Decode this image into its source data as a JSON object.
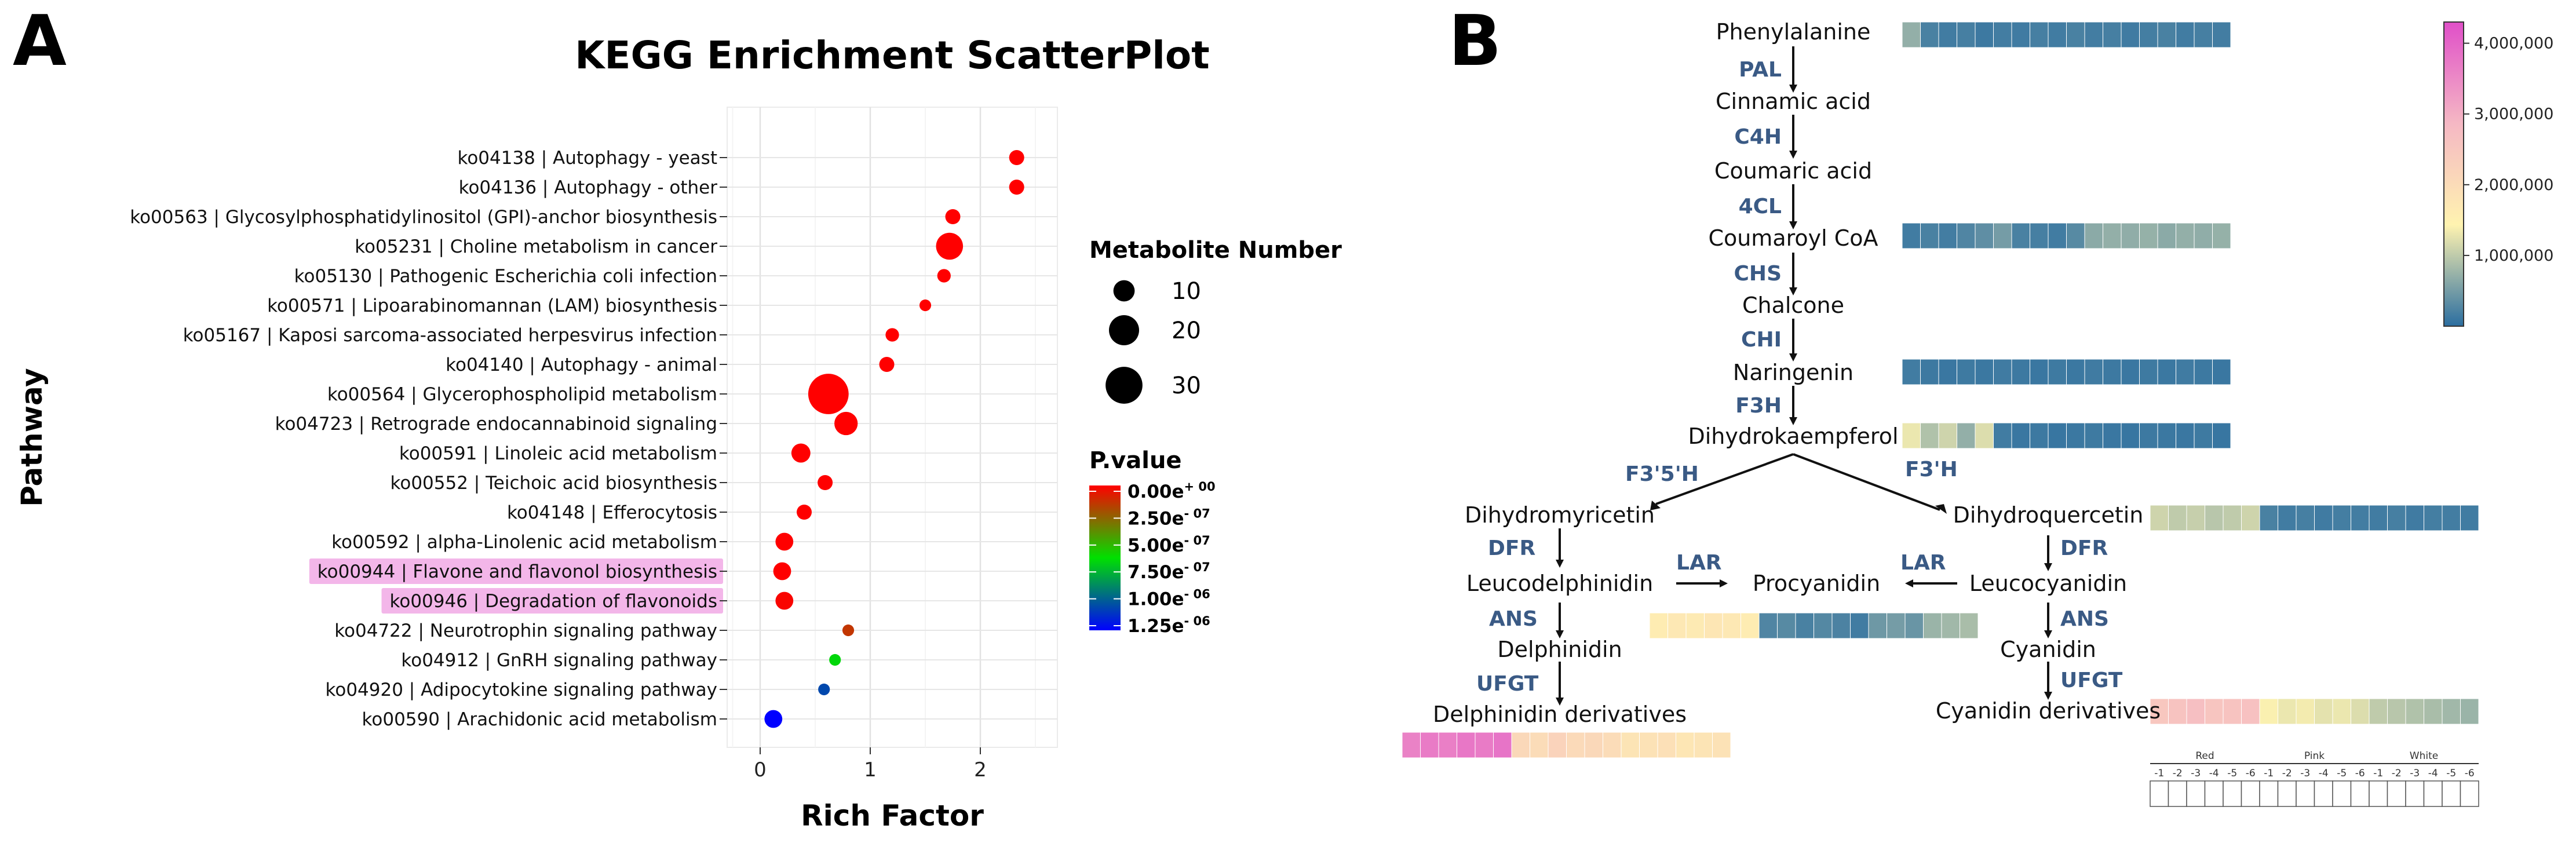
{
  "panels": {
    "a": "A",
    "b": "B"
  },
  "chart_data": {
    "type": "scatter",
    "title": "KEGG Enrichment ScatterPlot",
    "xlabel": "Rich Factor",
    "ylabel": "Pathway",
    "xlim": [
      -0.3,
      2.7
    ],
    "xticks": [
      0,
      1,
      2
    ],
    "grid": true,
    "points": [
      {
        "label": "ko04138 | Autophagy - yeast",
        "rich_factor": 2.33,
        "count": 5,
        "p": 0.0,
        "highlight": false
      },
      {
        "label": "ko04136 | Autophagy - other",
        "rich_factor": 2.33,
        "count": 5,
        "p": 0.0,
        "highlight": false
      },
      {
        "label": "ko00563 | Glycosylphosphatidylinositol (GPI)-anchor biosynthesis",
        "rich_factor": 1.75,
        "count": 5,
        "p": 0.0,
        "highlight": false
      },
      {
        "label": "ko05231 | Choline metabolism in cancer",
        "rich_factor": 1.72,
        "count": 16,
        "p": 0.0,
        "highlight": false
      },
      {
        "label": "ko05130 | Pathogenic Escherichia coli infection",
        "rich_factor": 1.67,
        "count": 4,
        "p": 0.0,
        "highlight": false
      },
      {
        "label": "ko00571 | Lipoarabinomannan (LAM) biosynthesis",
        "rich_factor": 1.5,
        "count": 3,
        "p": 0.0,
        "highlight": false
      },
      {
        "label": "ko05167 | Kaposi sarcoma-associated herpesvirus infection",
        "rich_factor": 1.2,
        "count": 4,
        "p": 0.0,
        "highlight": false
      },
      {
        "label": "ko04140 | Autophagy - animal",
        "rich_factor": 1.15,
        "count": 5,
        "p": 0.0,
        "highlight": false
      },
      {
        "label": "ko00564 | Glycerophospholipid metabolism",
        "rich_factor": 0.62,
        "count": 36,
        "p": 0.0,
        "highlight": false
      },
      {
        "label": "ko04723 | Retrograde endocannabinoid signaling",
        "rich_factor": 0.78,
        "count": 12,
        "p": 0.0,
        "highlight": false
      },
      {
        "label": "ko00591 | Linoleic acid metabolism",
        "rich_factor": 0.37,
        "count": 8,
        "p": 0.0,
        "highlight": false
      },
      {
        "label": "ko00552 | Teichoic acid biosynthesis",
        "rich_factor": 0.59,
        "count": 5,
        "p": 0.0,
        "highlight": false
      },
      {
        "label": "ko04148 | Efferocytosis",
        "rich_factor": 0.4,
        "count": 5,
        "p": 0.0,
        "highlight": false
      },
      {
        "label": "ko00592 | alpha-Linolenic acid metabolism",
        "rich_factor": 0.22,
        "count": 7,
        "p": 0.0,
        "highlight": false
      },
      {
        "label": "ko00944 | Flavone and flavonol biosynthesis",
        "rich_factor": 0.2,
        "count": 7,
        "p": 0.0,
        "highlight": true
      },
      {
        "label": "ko00946 | Degradation of flavonoids",
        "rich_factor": 0.22,
        "count": 7,
        "p": 1.5e-08,
        "highlight": true
      },
      {
        "label": "ko04722 | Neurotrophin signaling pathway",
        "rich_factor": 0.8,
        "count": 3,
        "p": 1.5e-07,
        "highlight": false
      },
      {
        "label": "ko04912 | GnRH signaling pathway",
        "rich_factor": 0.68,
        "count": 3,
        "p": 6.5e-07,
        "highlight": false
      },
      {
        "label": "ko04920 | Adipocytokine signaling pathway",
        "rich_factor": 0.58,
        "count": 3,
        "p": 1.05e-06,
        "highlight": false
      },
      {
        "label": "ko00590 | Arachidonic acid metabolism",
        "rich_factor": 0.12,
        "count": 7,
        "p": 1.25e-06,
        "highlight": false
      }
    ],
    "size_legend": {
      "title": "Metabolite Number",
      "values": [
        10,
        20,
        30
      ],
      "labels": [
        "10",
        "20",
        "30"
      ]
    },
    "color_legend": {
      "title": "P.value",
      "range": [
        0,
        1.25e-06
      ],
      "colors": [
        "#ff0000",
        "#00e000",
        "#0000ff"
      ],
      "ticks": [
        {
          "value": 0,
          "label_base": "0.00e",
          "label_exp": "+ 00"
        },
        {
          "value": 2.5e-07,
          "label_base": "2.50e",
          "label_exp": "- 07"
        },
        {
          "value": 5e-07,
          "label_base": "5.00e",
          "label_exp": "- 07"
        },
        {
          "value": 7.5e-07,
          "label_base": "7.50e",
          "label_exp": "- 07"
        },
        {
          "value": 1e-06,
          "label_base": "1.00e",
          "label_exp": "- 06"
        },
        {
          "value": 1.25e-06,
          "label_base": "1.25e",
          "label_exp": "- 06"
        }
      ]
    },
    "highlight_color": "#f3b6e9"
  },
  "pathway": {
    "nodes": {
      "phe": "Phenylalanine",
      "cin": "Cinnamic acid",
      "cou": "Coumaric acid",
      "coa": "Coumaroyl CoA",
      "cha": "Chalcone",
      "nar": "Naringenin",
      "dhk": "Dihydrokaempferol",
      "dhm": "Dihydromyricetin",
      "dhq": "Dihydroquercetin",
      "leud": "Leucodelphinidin",
      "leuc": "Leucocyanidin",
      "pro": "Procyanidin",
      "del": "Delphinidin",
      "cya": "Cyanidin",
      "deld": "Delphinidin derivatives",
      "cyad": "Cyanidin derivatives"
    },
    "enzymes": {
      "pal": "PAL",
      "c4h": "C4H",
      "4cl": "4CL",
      "chs": "CHS",
      "chi": "CHI",
      "f3h": "F3H",
      "f35h": "F3'5'H",
      "f3h2": "F3'H",
      "dfr_l": "DFR",
      "dfr_r": "DFR",
      "lar_l": "LAR",
      "lar_r": "LAR",
      "ans_l": "ANS",
      "ans_r": "ANS",
      "ufgt_l": "UFGT",
      "ufgt_r": "UFGT"
    },
    "heatmap_scale": {
      "ticks": [
        {
          "value": 4000000,
          "label": "4,000,000"
        },
        {
          "value": 3000000,
          "label": "3,000,000"
        },
        {
          "value": 2000000,
          "label": "2,000,000"
        },
        {
          "value": 1000000,
          "label": "1,000,000"
        }
      ],
      "min": 0,
      "max": 4300000,
      "colors": [
        "#2b6ea0",
        "#fff3b0",
        "#f5b8c4",
        "#e04fc8"
      ]
    },
    "heatmaps": {
      "phe": [
        700000,
        200000,
        150000,
        180000,
        120000,
        160000,
        140000,
        180000,
        150000,
        200000,
        160000,
        180000,
        140000,
        170000,
        200000,
        150000,
        180000,
        160000
      ],
      "coa": [
        150000,
        200000,
        160000,
        250000,
        350000,
        500000,
        200000,
        180000,
        150000,
        300000,
        650000,
        700000,
        680000,
        720000,
        650000,
        700000,
        680000,
        720000
      ],
      "nar": [
        150000,
        120000,
        100000,
        130000,
        110000,
        140000,
        120000,
        100000,
        130000,
        110000,
        140000,
        120000,
        100000,
        130000,
        110000,
        140000,
        120000,
        100000
      ],
      "dhk": [
        1300000,
        900000,
        1100000,
        700000,
        1200000,
        150000,
        100000,
        120000,
        90000,
        110000,
        130000,
        100000,
        90000,
        120000,
        110000,
        100000,
        130000,
        90000
      ],
      "dhq": [
        1100000,
        1000000,
        1050000,
        950000,
        1000000,
        1100000,
        200000,
        150000,
        180000,
        140000,
        170000,
        160000,
        150000,
        180000,
        140000,
        170000,
        160000,
        150000
      ],
      "pro": [
        1600000,
        1700000,
        1650000,
        1750000,
        1700000,
        1600000,
        250000,
        300000,
        200000,
        280000,
        220000,
        150000,
        450000,
        500000,
        420000,
        750000,
        800000,
        850000
      ],
      "deld": [
        3600000,
        3700000,
        3650000,
        3750000,
        3700000,
        3800000,
        2100000,
        2000000,
        2200000,
        2050000,
        2100000,
        2000000,
        1800000,
        1850000,
        1900000,
        1750000,
        1800000,
        1850000
      ],
      "cyad": [
        2500000,
        2600000,
        2700000,
        2550000,
        2600000,
        2650000,
        1400000,
        1300000,
        1350000,
        1250000,
        1300000,
        1200000,
        1000000,
        950000,
        900000,
        850000,
        800000,
        750000
      ]
    },
    "sample_legend": {
      "groups": [
        "Red",
        "Pink",
        "White"
      ],
      "samples": [
        "-1",
        "-2",
        "-3",
        "-4",
        "-5",
        "-6"
      ]
    }
  }
}
